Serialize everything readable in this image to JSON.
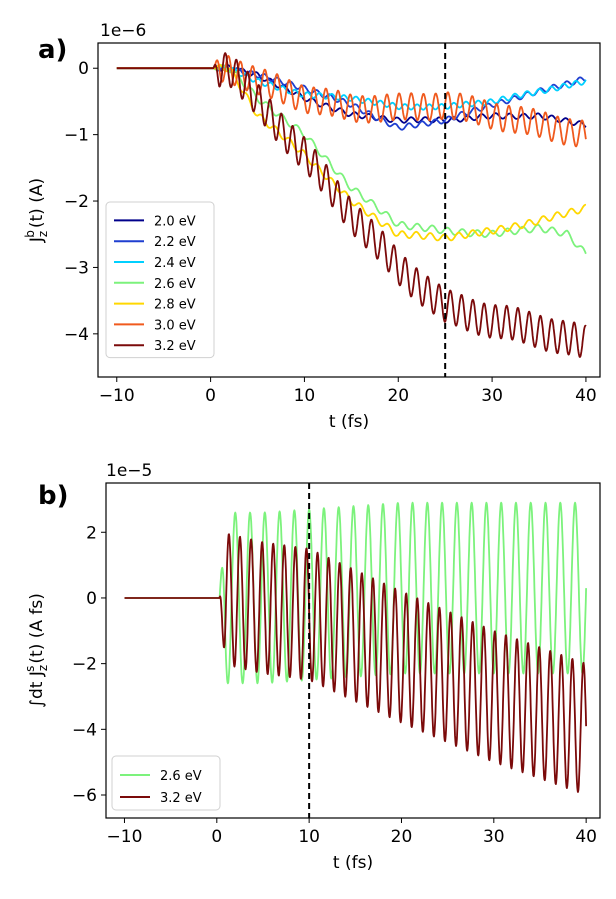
{
  "chart_data": [
    {
      "type": "line",
      "panel_label": "a)",
      "offset_text": "1e−6",
      "xlabel": "t (fs)",
      "ylabel": "J",
      "ylabel_sub": "z",
      "ylabel_sup": "b",
      "ylabel_tail": "(t) (A)",
      "xlim": [
        -12,
        41.5
      ],
      "ylim": [
        -4.65,
        0.38
      ],
      "xticks": [
        -10,
        0,
        10,
        20,
        30,
        40
      ],
      "xtick_labels": [
        "−10",
        "0",
        "10",
        "20",
        "30",
        "40"
      ],
      "yticks": [
        0,
        -1,
        -2,
        -3,
        -4
      ],
      "ytick_labels": [
        "0",
        "−1",
        "−2",
        "−3",
        "−4"
      ],
      "vline": 25,
      "legend_position": "lower-left",
      "series": [
        {
          "name": "2.0 eV",
          "color": "#00008b",
          "x": [
            -10,
            0,
            2,
            5,
            10,
            15,
            20,
            25,
            30,
            35,
            40
          ],
          "values": [
            0,
            0,
            0,
            -0.1,
            -0.45,
            -0.7,
            -0.78,
            -0.78,
            -0.72,
            -0.72,
            -0.85
          ],
          "osc_amp": 0.04,
          "osc_period": 1.5
        },
        {
          "name": "2.2 eV",
          "color": "#1f3fd0",
          "x": [
            -10,
            0,
            2,
            5,
            10,
            15,
            20,
            25,
            30,
            35,
            40
          ],
          "values": [
            0,
            0,
            0,
            -0.1,
            -0.3,
            -0.55,
            -0.9,
            -0.78,
            -0.55,
            -0.35,
            -0.15
          ],
          "osc_amp": 0.04,
          "osc_period": 1.4
        },
        {
          "name": "2.4 eV",
          "color": "#00d0ff",
          "x": [
            -10,
            0,
            2,
            5,
            10,
            15,
            20,
            25,
            30,
            35,
            40
          ],
          "values": [
            0,
            0,
            0,
            -0.2,
            -0.4,
            -0.45,
            -0.58,
            -0.58,
            -0.5,
            -0.35,
            -0.2
          ],
          "osc_amp": 0.04,
          "osc_period": 1.3
        },
        {
          "name": "2.6 eV",
          "color": "#7cf27c",
          "x": [
            -10,
            0,
            2,
            5,
            10,
            15,
            20,
            25,
            30,
            35,
            38,
            40
          ],
          "values": [
            0,
            0,
            0,
            -0.45,
            -1.0,
            -1.8,
            -2.35,
            -2.45,
            -2.5,
            -2.4,
            -2.5,
            -2.8
          ],
          "osc_amp": 0.05,
          "osc_period": 1.6
        },
        {
          "name": "2.8 eV",
          "color": "#ffd700",
          "x": [
            -10,
            0,
            2,
            5,
            10,
            15,
            20,
            25,
            30,
            35,
            40
          ],
          "values": [
            0,
            0,
            0,
            -0.7,
            -1.3,
            -2.0,
            -2.5,
            -2.55,
            -2.45,
            -2.3,
            -2.1
          ],
          "osc_amp": 0.05,
          "osc_period": 1.5
        },
        {
          "name": "3.0 eV",
          "color": "#f05a1e",
          "x": [
            -10,
            0,
            2,
            5,
            10,
            15,
            20,
            25,
            30,
            35,
            40
          ],
          "values": [
            0,
            0,
            0,
            -0.2,
            -0.45,
            -0.6,
            -0.6,
            -0.55,
            -0.7,
            -0.85,
            -1.0
          ],
          "osc_amp": 0.2,
          "osc_period": 1.3
        },
        {
          "name": "3.2 eV",
          "color": "#7b0a0a",
          "x": [
            -10,
            0,
            2,
            5,
            10,
            15,
            20,
            25,
            30,
            35,
            40
          ],
          "values": [
            0,
            0,
            0,
            -0.5,
            -1.3,
            -2.2,
            -3.0,
            -3.6,
            -3.8,
            -3.95,
            -4.15
          ],
          "osc_amp": 0.25,
          "osc_period": 1.2
        }
      ]
    },
    {
      "type": "line",
      "panel_label": "b)",
      "offset_text": "1e−5",
      "xlabel": "t (fs)",
      "ylabel": "∫dt J",
      "ylabel_sub": "z",
      "ylabel_sup": "s",
      "ylabel_tail": "(t) (A fs)",
      "xlim": [
        -12,
        41.5
      ],
      "ylim": [
        -6.7,
        3.5
      ],
      "xticks": [
        -10,
        0,
        10,
        20,
        30,
        40
      ],
      "xtick_labels": [
        "−10",
        "0",
        "10",
        "20",
        "30",
        "40"
      ],
      "yticks": [
        2,
        0,
        -2,
        -4,
        -6
      ],
      "ytick_labels": [
        "2",
        "0",
        "−2",
        "−4",
        "−6"
      ],
      "vline": 10,
      "legend_position": "lower-left",
      "series": [
        {
          "name": "2.6 eV",
          "color": "#7cf27c",
          "x": [
            -10,
            0,
            0.5,
            5,
            10,
            20,
            30,
            40
          ],
          "values": [
            0,
            0,
            0,
            0,
            0.1,
            0.3,
            0.3,
            0.3
          ],
          "osc_amp": 2.6,
          "osc_period": 1.6
        },
        {
          "name": "3.2 eV",
          "color": "#7b0a0a",
          "x": [
            -10,
            0,
            0.5,
            5,
            10,
            20,
            30,
            40
          ],
          "values": [
            0,
            0,
            0,
            -0.3,
            -0.5,
            -1.8,
            -3.0,
            -4.0
          ],
          "osc_amp": 2.0,
          "osc_period": 1.2
        }
      ]
    }
  ]
}
